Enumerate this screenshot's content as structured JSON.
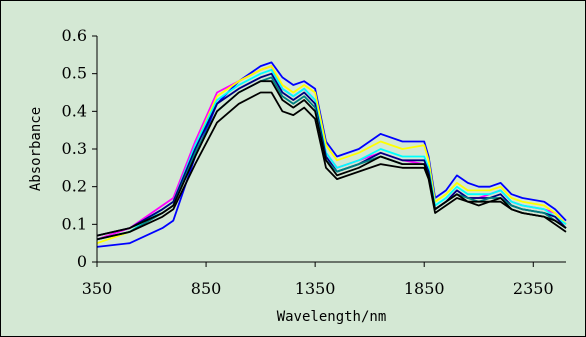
{
  "chart_data": {
    "type": "line",
    "title": "",
    "xlabel": "Wavelength/nm",
    "ylabel": "Absorbance",
    "xlim": [
      350,
      2500
    ],
    "ylim": [
      0,
      0.6
    ],
    "xticks": [
      350,
      850,
      1350,
      1850,
      2350
    ],
    "xtick_labels": [
      "350",
      "850",
      "1350",
      "1850",
      "2350"
    ],
    "yticks": [
      0,
      0.1,
      0.2,
      0.3,
      0.4,
      0.5,
      0.6
    ],
    "ytick_labels": [
      "0",
      "0.1",
      "0.2",
      "0.3",
      "0.4",
      "0.5",
      "0.6"
    ],
    "grid": false,
    "legend": "none",
    "x": [
      350,
      500,
      650,
      700,
      800,
      900,
      1000,
      1100,
      1150,
      1200,
      1250,
      1300,
      1350,
      1400,
      1450,
      1550,
      1650,
      1750,
      1850,
      1870,
      1900,
      1950,
      2000,
      2050,
      2100,
      2150,
      2200,
      2250,
      2300,
      2400,
      2450,
      2500
    ],
    "series": [
      {
        "color": "#0000ff",
        "values": [
          0.04,
          0.05,
          0.09,
          0.11,
          0.28,
          0.42,
          0.48,
          0.52,
          0.53,
          0.49,
          0.47,
          0.48,
          0.46,
          0.32,
          0.28,
          0.3,
          0.34,
          0.32,
          0.32,
          0.28,
          0.17,
          0.19,
          0.23,
          0.21,
          0.2,
          0.2,
          0.21,
          0.18,
          0.17,
          0.16,
          0.14,
          0.11
        ]
      },
      {
        "color": "#ff00ff",
        "values": [
          0.06,
          0.09,
          0.15,
          0.17,
          0.32,
          0.45,
          0.48,
          0.51,
          0.52,
          0.46,
          0.44,
          0.46,
          0.43,
          0.29,
          0.25,
          0.27,
          0.29,
          0.27,
          0.26,
          0.24,
          0.14,
          0.16,
          0.19,
          0.17,
          0.17,
          0.18,
          0.19,
          0.16,
          0.15,
          0.14,
          0.13,
          0.1
        ]
      },
      {
        "color": "#ffff00",
        "values": [
          0.05,
          0.08,
          0.14,
          0.16,
          0.31,
          0.44,
          0.48,
          0.51,
          0.52,
          0.47,
          0.45,
          0.47,
          0.45,
          0.31,
          0.27,
          0.29,
          0.32,
          0.3,
          0.31,
          0.27,
          0.16,
          0.18,
          0.21,
          0.19,
          0.19,
          0.19,
          0.2,
          0.17,
          0.16,
          0.15,
          0.13,
          0.1
        ]
      },
      {
        "color": "#00ffff",
        "values": [
          0.06,
          0.08,
          0.14,
          0.16,
          0.31,
          0.43,
          0.47,
          0.5,
          0.51,
          0.46,
          0.44,
          0.46,
          0.43,
          0.29,
          0.25,
          0.27,
          0.3,
          0.28,
          0.28,
          0.25,
          0.15,
          0.17,
          0.2,
          0.18,
          0.18,
          0.18,
          0.19,
          0.16,
          0.15,
          0.14,
          0.12,
          0.1
        ]
      },
      {
        "color": "#000080",
        "values": [
          0.07,
          0.09,
          0.14,
          0.16,
          0.3,
          0.42,
          0.46,
          0.49,
          0.5,
          0.45,
          0.43,
          0.45,
          0.42,
          0.28,
          0.24,
          0.26,
          0.29,
          0.27,
          0.27,
          0.24,
          0.14,
          0.16,
          0.19,
          0.17,
          0.17,
          0.17,
          0.18,
          0.15,
          0.14,
          0.13,
          0.12,
          0.09
        ]
      },
      {
        "color": "#008080",
        "values": [
          0.06,
          0.08,
          0.13,
          0.15,
          0.29,
          0.4,
          0.45,
          0.48,
          0.49,
          0.44,
          0.42,
          0.44,
          0.41,
          0.27,
          0.24,
          0.26,
          0.28,
          0.26,
          0.26,
          0.23,
          0.14,
          0.16,
          0.18,
          0.17,
          0.16,
          0.17,
          0.17,
          0.15,
          0.14,
          0.13,
          0.11,
          0.09
        ]
      },
      {
        "color": "#000000",
        "values": [
          0.07,
          0.09,
          0.13,
          0.15,
          0.28,
          0.4,
          0.45,
          0.48,
          0.48,
          0.43,
          0.41,
          0.43,
          0.4,
          0.27,
          0.23,
          0.25,
          0.28,
          0.26,
          0.26,
          0.23,
          0.14,
          0.16,
          0.18,
          0.16,
          0.16,
          0.16,
          0.17,
          0.14,
          0.13,
          0.12,
          0.11,
          0.09
        ]
      },
      {
        "color": "#000000",
        "values": [
          0.06,
          0.08,
          0.12,
          0.14,
          0.26,
          0.37,
          0.42,
          0.45,
          0.45,
          0.4,
          0.39,
          0.41,
          0.38,
          0.25,
          0.22,
          0.24,
          0.26,
          0.25,
          0.25,
          0.22,
          0.13,
          0.15,
          0.17,
          0.16,
          0.15,
          0.16,
          0.16,
          0.14,
          0.13,
          0.12,
          0.1,
          0.08
        ]
      }
    ]
  }
}
